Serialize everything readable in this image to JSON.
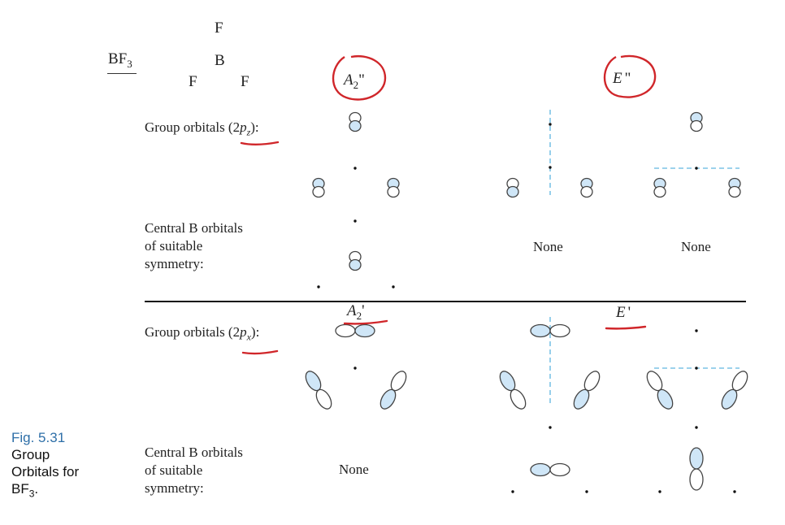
{
  "molecule": {
    "formula_main": "BF",
    "formula_sub": "3",
    "atom_top": "F",
    "atom_center": "B",
    "atom_left": "F",
    "atom_right": "F"
  },
  "symmetry": {
    "a2dd_main": "A",
    "a2dd_sub": "2",
    "a2dd_prime": "\"",
    "edd_main": "E",
    "edd_prime": "\"",
    "a2d_main": "A",
    "a2d_sub": "2",
    "a2d_prime": "'",
    "ed_main": "E",
    "ed_prime": "'"
  },
  "rows": {
    "group_2pz_prefix": "Group orbitals (2",
    "group_2pz_p": "p",
    "group_2pz_sub": "z",
    "group_2pz_suffix": "):",
    "group_2px_prefix": "Group orbitals (2",
    "group_2px_p": "p",
    "group_2px_sub": "x",
    "group_2px_suffix": "):",
    "central_line1": "Central B orbitals",
    "central_line2": "of suitable",
    "central_line3": "symmetry:",
    "central2_line1": "Central B orbitals",
    "central2_line2": "of suitable",
    "central2_line3": "symmetry:",
    "none_edd_1": "None",
    "none_edd_2": "None",
    "none_a2d": "None"
  },
  "caption": {
    "fig_label": "Fig. 5.31",
    "line1": "Group",
    "line2": "Orbitals for",
    "line3_main": "BF",
    "line3_sub": "3",
    "line3_end": "."
  },
  "colors": {
    "lobe_fill": "#cfe6f7",
    "lobe_stroke": "#444444",
    "annotation_red": "#d0262a",
    "dashed_blue": "#7cc3e6",
    "caption_blue": "#2e6fa8"
  }
}
